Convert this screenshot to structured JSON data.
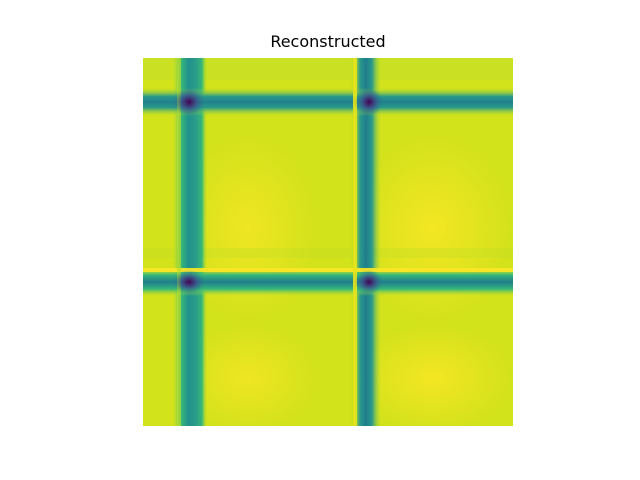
{
  "title": "Reconstructed",
  "colormap": "viridis",
  "colors": {
    "bright": "#fde725",
    "light": "#c8e020",
    "mid": "#22a884",
    "teal": "#2a788e",
    "dark": "#440154"
  }
}
